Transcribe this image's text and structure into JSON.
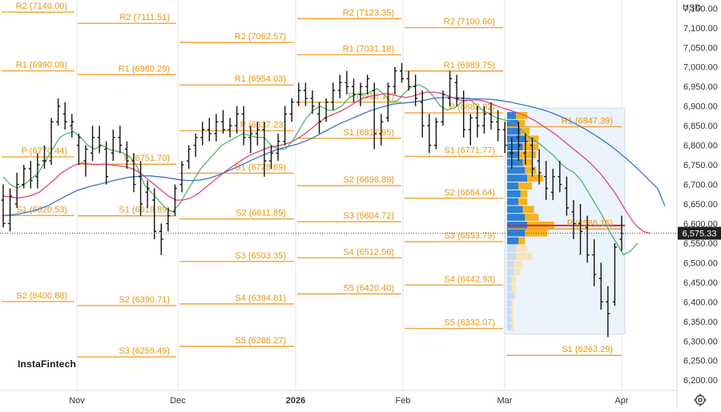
{
  "chart_data": {
    "type": "candlestick",
    "currency": "USD",
    "current_price": "6,575.33",
    "y_axis_ticks": [
      "7,150.00",
      "7,100.00",
      "7,050.00",
      "7,000.00",
      "6,950.00",
      "6,900.00",
      "6,850.00",
      "6,800.00",
      "6,750.00",
      "6,700.00",
      "6,650.00",
      "6,600.00",
      "6,550.00",
      "6,500.00",
      "6,450.00",
      "6,400.00",
      "6,350.00",
      "6,300.00",
      "6,250.00",
      "6,200.00"
    ],
    "y_axis_values": [
      7150,
      7100,
      7050,
      7000,
      6950,
      6900,
      6850,
      6800,
      6750,
      6700,
      6650,
      6600,
      6550,
      6500,
      6450,
      6400,
      6350,
      6300,
      6250,
      6200
    ],
    "ylim": [
      6180,
      7165
    ],
    "x_axis_labels": [
      {
        "label": "Nov",
        "bold": false
      },
      {
        "label": "Dec",
        "bold": false
      },
      {
        "label": "2026",
        "bold": true
      },
      {
        "label": "Feb",
        "bold": false
      },
      {
        "label": "Mar",
        "bold": false
      },
      {
        "label": "Apr",
        "bold": false
      }
    ],
    "pivot_levels": [
      {
        "label": "R2 (7140.00)",
        "value": 7140.0,
        "segment": 0
      },
      {
        "label": "R1 (6990.09)",
        "value": 6990.09,
        "segment": 0
      },
      {
        "label": "P (6770.44)",
        "value": 6770.44,
        "segment": 0
      },
      {
        "label": "S1 (6620.53)",
        "value": 6620.53,
        "segment": 0
      },
      {
        "label": "S2 (6400.88)",
        "value": 6400.88,
        "segment": 0
      },
      {
        "label": "R2 (7111.51)",
        "value": 7111.51,
        "segment": 1
      },
      {
        "label": "R1 (6980.29)",
        "value": 6980.29,
        "segment": 1
      },
      {
        "label": "P (6751.70)",
        "value": 6751.7,
        "segment": 1
      },
      {
        "label": "S1 (6619.89)",
        "value": 6619.89,
        "segment": 1
      },
      {
        "label": "S2 (6390.71)",
        "value": 6390.71,
        "segment": 1
      },
      {
        "label": "S3 (6259.49)",
        "value": 6259.49,
        "segment": 1
      },
      {
        "label": "R2 (7062.57)",
        "value": 7062.57,
        "segment": 2
      },
      {
        "label": "R1 (6954.03)",
        "value": 6954.03,
        "segment": 2
      },
      {
        "label": "P (6837.23)",
        "value": 6837.23,
        "segment": 2
      },
      {
        "label": "S1 (6728.69)",
        "value": 6728.69,
        "segment": 2
      },
      {
        "label": "S2 (6611.89)",
        "value": 6611.89,
        "segment": 2
      },
      {
        "label": "S3 (6503.35)",
        "value": 6503.35,
        "segment": 2
      },
      {
        "label": "S4 (6394.81)",
        "value": 6394.81,
        "segment": 2
      },
      {
        "label": "S5 (6286.27)",
        "value": 6286.27,
        "segment": 2
      },
      {
        "label": "R2 (7123.35)",
        "value": 7123.35,
        "segment": 3
      },
      {
        "label": "R1 (7031.18)",
        "value": 7031.18,
        "segment": 3
      },
      {
        "label": "P (6910.12)",
        "value": 6910.12,
        "segment": 3
      },
      {
        "label": "S1 (6817.95)",
        "value": 6817.95,
        "segment": 3
      },
      {
        "label": "S2 (6696.89)",
        "value": 6696.89,
        "segment": 3
      },
      {
        "label": "S3 (6604.72)",
        "value": 6604.72,
        "segment": 3
      },
      {
        "label": "S4 (6512.56)",
        "value": 6512.56,
        "segment": 3
      },
      {
        "label": "S5 (6420.40)",
        "value": 6420.4,
        "segment": 3
      },
      {
        "label": "R2 (7100.60)",
        "value": 7100.6,
        "segment": 4
      },
      {
        "label": "R1 (6989.75)",
        "value": 6989.75,
        "segment": 4
      },
      {
        "label": "P (6882.92)",
        "value": 6882.92,
        "segment": 4
      },
      {
        "label": "S1 (6771.77)",
        "value": 6771.77,
        "segment": 4
      },
      {
        "label": "S2 (6664.64)",
        "value": 6664.64,
        "segment": 4
      },
      {
        "label": "S3 (6553.79)",
        "value": 6553.79,
        "segment": 4
      },
      {
        "label": "S4 (6442.93)",
        "value": 6442.93,
        "segment": 4
      },
      {
        "label": "S5 (6332.07)",
        "value": 6332.07,
        "segment": 4
      },
      {
        "label": "R1 (6847.39)",
        "value": 6847.39,
        "segment": 5
      },
      {
        "label": "P (6586.15)",
        "value": 6586.15,
        "segment": 5
      },
      {
        "label": "S1 (6263.29)",
        "value": 6263.29,
        "segment": 5
      }
    ],
    "price_bars": [
      [
        6660,
        6700,
        6590,
        6600
      ],
      [
        6600,
        6690,
        6580,
        6670
      ],
      [
        6650,
        6730,
        6640,
        6700
      ],
      [
        6700,
        6750,
        6690,
        6740
      ],
      [
        6740,
        6760,
        6690,
        6710
      ],
      [
        6720,
        6780,
        6690,
        6750
      ],
      [
        6760,
        6800,
        6740,
        6760
      ],
      [
        6760,
        6870,
        6750,
        6860
      ],
      [
        6860,
        6920,
        6850,
        6900
      ],
      [
        6880,
        6910,
        6840,
        6860
      ],
      [
        6850,
        6880,
        6820,
        6860
      ],
      [
        6800,
        6830,
        6750,
        6820
      ],
      [
        6760,
        6800,
        6720,
        6790
      ],
      [
        6780,
        6850,
        6760,
        6820
      ],
      [
        6820,
        6850,
        6780,
        6800
      ],
      [
        6790,
        6810,
        6700,
        6720
      ],
      [
        6780,
        6840,
        6760,
        6820
      ],
      [
        6820,
        6850,
        6780,
        6800
      ],
      [
        6790,
        6810,
        6740,
        6760
      ],
      [
        6760,
        6780,
        6680,
        6700
      ],
      [
        6720,
        6760,
        6620,
        6650
      ],
      [
        6680,
        6710,
        6640,
        6690
      ],
      [
        6660,
        6690,
        6560,
        6580
      ],
      [
        6580,
        6600,
        6520,
        6560
      ],
      [
        6600,
        6640,
        6580,
        6620
      ],
      [
        6630,
        6700,
        6620,
        6690
      ],
      [
        6700,
        6760,
        6680,
        6750
      ],
      [
        6760,
        6800,
        6740,
        6790
      ],
      [
        6800,
        6830,
        6770,
        6820
      ],
      [
        6820,
        6860,
        6800,
        6840
      ],
      [
        6840,
        6870,
        6810,
        6830
      ],
      [
        6830,
        6880,
        6810,
        6860
      ],
      [
        6860,
        6890,
        6830,
        6840
      ],
      [
        6840,
        6870,
        6820,
        6850
      ],
      [
        6850,
        6900,
        6830,
        6880
      ],
      [
        6880,
        6900,
        6800,
        6820
      ],
      [
        6820,
        6850,
        6780,
        6830
      ],
      [
        6830,
        6860,
        6800,
        6840
      ],
      [
        6840,
        6860,
        6720,
        6760
      ],
      [
        6760,
        6800,
        6740,
        6780
      ],
      [
        6780,
        6830,
        6760,
        6810
      ],
      [
        6810,
        6900,
        6800,
        6880
      ],
      [
        6880,
        6920,
        6860,
        6910
      ],
      [
        6910,
        6960,
        6900,
        6940
      ],
      [
        6940,
        6960,
        6900,
        6920
      ],
      [
        6920,
        6940,
        6880,
        6900
      ],
      [
        6880,
        6910,
        6830,
        6860
      ],
      [
        6870,
        6920,
        6860,
        6910
      ],
      [
        6910,
        6960,
        6890,
        6940
      ],
      [
        6940,
        6980,
        6920,
        6960
      ],
      [
        6960,
        6990,
        6930,
        6950
      ],
      [
        6950,
        6970,
        6910,
        6930
      ],
      [
        6930,
        6960,
        6900,
        6950
      ],
      [
        6950,
        6980,
        6930,
        6970
      ],
      [
        6940,
        6960,
        6790,
        6830
      ],
      [
        6830,
        6880,
        6800,
        6860
      ],
      [
        6870,
        6960,
        6860,
        6950
      ],
      [
        6950,
        7000,
        6930,
        6990
      ],
      [
        6990,
        7010,
        6960,
        6970
      ],
      [
        6970,
        6990,
        6940,
        6950
      ],
      [
        6950,
        6980,
        6900,
        6920
      ],
      [
        6910,
        6940,
        6820,
        6850
      ],
      [
        6850,
        6880,
        6780,
        6800
      ],
      [
        6800,
        6870,
        6790,
        6860
      ],
      [
        6860,
        6940,
        6850,
        6930
      ],
      [
        6920,
        6990,
        6900,
        6970
      ],
      [
        6960,
        6980,
        6900,
        6920
      ],
      [
        6920,
        6940,
        6820,
        6840
      ],
      [
        6840,
        6880,
        6800,
        6870
      ],
      [
        6870,
        6900,
        6820,
        6850
      ],
      [
        6850,
        6900,
        6830,
        6880
      ],
      [
        6880,
        6910,
        6840,
        6860
      ],
      [
        6860,
        6890,
        6810,
        6840
      ],
      [
        6840,
        6860,
        6780,
        6800
      ],
      [
        6780,
        6820,
        6740,
        6780
      ],
      [
        6820,
        6860,
        6760,
        6800
      ],
      [
        6780,
        6830,
        6750,
        6810
      ],
      [
        6800,
        6820,
        6720,
        6740
      ],
      [
        6760,
        6790,
        6700,
        6730
      ],
      [
        6720,
        6760,
        6660,
        6690
      ],
      [
        6680,
        6740,
        6660,
        6720
      ],
      [
        6720,
        6760,
        6680,
        6700
      ],
      [
        6690,
        6720,
        6620,
        6640
      ],
      [
        6630,
        6660,
        6560,
        6600
      ],
      [
        6600,
        6650,
        6520,
        6580
      ],
      [
        6590,
        6620,
        6500,
        6520
      ],
      [
        6520,
        6560,
        6440,
        6470
      ],
      [
        6460,
        6500,
        6380,
        6400
      ],
      [
        6400,
        6440,
        6310,
        6370
      ],
      [
        6400,
        6550,
        6390,
        6540
      ],
      [
        6560,
        6620,
        6530,
        6575
      ]
    ],
    "series": [
      {
        "name": "",
        "color": "#55b36b",
        "values": [
          6720,
          6700,
          6690,
          6700,
          6715,
          6730,
          6760,
          6790,
          6820,
          6830,
          6835,
          6820,
          6800,
          6790,
          6800,
          6790,
          6785,
          6780,
          6770,
          6745,
          6700,
          6680,
          6660,
          6640,
          6630,
          6650,
          6680,
          6710,
          6740,
          6760,
          6780,
          6800,
          6810,
          6820,
          6830,
          6825,
          6820,
          6820,
          6800,
          6790,
          6790,
          6810,
          6840,
          6870,
          6890,
          6900,
          6890,
          6890,
          6900,
          6920,
          6930,
          6930,
          6935,
          6945,
          6930,
          6910,
          6915,
          6935,
          6950,
          6955,
          6945,
          6925,
          6900,
          6890,
          6895,
          6910,
          6920,
          6905,
          6890,
          6880,
          6870,
          6865,
          6860,
          6850,
          6830,
          6815,
          6805,
          6790,
          6775,
          6755,
          6740,
          6730,
          6710,
          6680,
          6650,
          6620,
          6580,
          6550,
          6520,
          6530,
          6550
        ]
      },
      {
        "name": "",
        "color": "#e0457a",
        "values": [
          6670,
          6668,
          6665,
          6668,
          6672,
          6680,
          6695,
          6710,
          6728,
          6740,
          6750,
          6755,
          6752,
          6750,
          6752,
          6750,
          6748,
          6745,
          6740,
          6730,
          6715,
          6700,
          6685,
          6670,
          6660,
          6660,
          6665,
          6675,
          6690,
          6705,
          6720,
          6735,
          6748,
          6760,
          6772,
          6780,
          6788,
          6795,
          6798,
          6802,
          6808,
          6818,
          6830,
          6845,
          6860,
          6872,
          6880,
          6888,
          6898,
          6910,
          6920,
          6925,
          6928,
          6932,
          6930,
          6925,
          6922,
          6926,
          6932,
          6936,
          6936,
          6932,
          6925,
          6918,
          6914,
          6915,
          6916,
          6912,
          6905,
          6898,
          6892,
          6886,
          6880,
          6872,
          6862,
          6850,
          6838,
          6825,
          6810,
          6795,
          6780,
          6765,
          6748,
          6728,
          6705,
          6680,
          6650,
          6620,
          6595,
          6580,
          6575
        ]
      },
      {
        "name": "",
        "color": "#3d74c9",
        "values": [
          6620,
          6622,
          6624,
          6628,
          6632,
          6638,
          6645,
          6655,
          6665,
          6675,
          6684,
          6690,
          6696,
          6700,
          6705,
          6710,
          6714,
          6718,
          6720,
          6722,
          6722,
          6720,
          6718,
          6715,
          6712,
          6710,
          6710,
          6712,
          6716,
          6722,
          6730,
          6738,
          6746,
          6755,
          6764,
          6772,
          6780,
          6787,
          6793,
          6798,
          6803,
          6810,
          6818,
          6828,
          6838,
          6848,
          6857,
          6865,
          6873,
          6881,
          6889,
          6895,
          6900,
          6905,
          6907,
          6909,
          6911,
          6914,
          6918,
          6921,
          6922,
          6922,
          6921,
          6920,
          6919,
          6918,
          6918,
          6916,
          6913,
          6910,
          6906,
          6902,
          6898,
          6893,
          6887,
          6880,
          6872,
          6863,
          6853,
          6843,
          6832,
          6820,
          6807,
          6793,
          6778,
          6762,
          6745,
          6727,
          6708,
          6690,
          6645
        ]
      }
    ],
    "volume_profile": [
      {
        "price": 6875,
        "blue": 8,
        "orange": 10
      },
      {
        "price": 6855,
        "blue": 10,
        "orange": 6
      },
      {
        "price": 6835,
        "blue": 12,
        "orange": 8
      },
      {
        "price": 6815,
        "blue": 16,
        "orange": 12
      },
      {
        "price": 6795,
        "blue": 14,
        "orange": 14
      },
      {
        "price": 6775,
        "blue": 10,
        "orange": 16
      },
      {
        "price": 6755,
        "blue": 14,
        "orange": 8
      },
      {
        "price": 6735,
        "blue": 16,
        "orange": 10
      },
      {
        "price": 6715,
        "blue": 18,
        "orange": 14
      },
      {
        "price": 6695,
        "blue": 10,
        "orange": 12
      },
      {
        "price": 6675,
        "blue": 12,
        "orange": 6
      },
      {
        "price": 6655,
        "blue": 10,
        "orange": 8
      },
      {
        "price": 6635,
        "blue": 14,
        "orange": 10
      },
      {
        "price": 6615,
        "blue": 16,
        "orange": 12
      },
      {
        "price": 6595,
        "blue": 18,
        "orange": 24
      },
      {
        "price": 6575,
        "blue": 16,
        "orange": 20
      },
      {
        "price": 6555,
        "blue": 10,
        "orange": 6
      },
      {
        "price": 6535,
        "blue": 8,
        "orange": 10,
        "faded": true
      },
      {
        "price": 6515,
        "blue": 8,
        "orange": 14,
        "faded": true
      },
      {
        "price": 6495,
        "blue": 6,
        "orange": 8,
        "faded": true
      },
      {
        "price": 6475,
        "blue": 6,
        "orange": 6,
        "faded": true
      },
      {
        "price": 6455,
        "blue": 4,
        "orange": 4,
        "faded": true
      },
      {
        "price": 6435,
        "blue": 4,
        "orange": 4,
        "faded": true
      },
      {
        "price": 6415,
        "blue": 6,
        "orange": 2,
        "faded": true
      },
      {
        "price": 6395,
        "blue": 4,
        "orange": 2,
        "faded": true
      },
      {
        "price": 6375,
        "blue": 4,
        "orange": 2,
        "faded": true
      },
      {
        "price": 6355,
        "blue": 4,
        "orange": 2,
        "faded": true
      },
      {
        "price": 6335,
        "blue": 4,
        "orange": 2,
        "faded": true
      }
    ],
    "poc_price": 6595,
    "logo": "InstaFintech"
  }
}
